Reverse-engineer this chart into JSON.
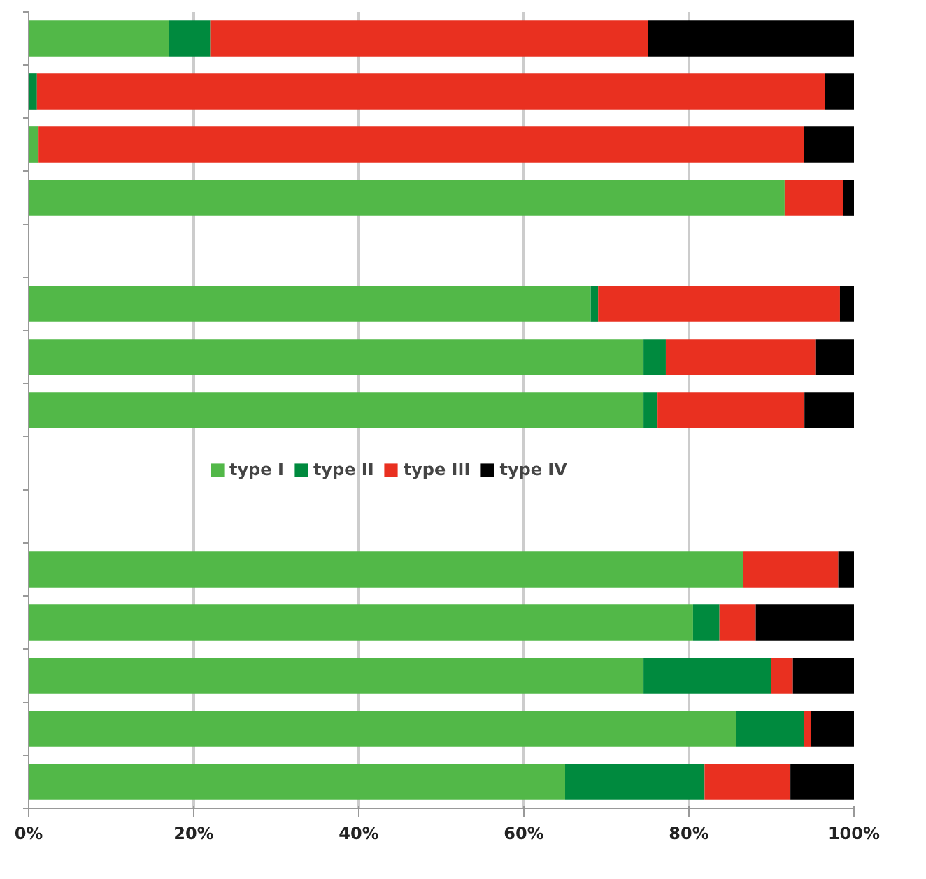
{
  "chart_data": {
    "type": "bar",
    "orientation": "horizontal",
    "stacked": true,
    "categories": [
      null,
      null,
      null,
      null,
      null,
      null,
      null,
      null,
      null,
      null,
      null,
      null,
      null,
      null,
      null
    ],
    "series": [
      {
        "name": "type I",
        "color": "#52b848",
        "values": [
          17,
          0,
          1.2,
          91.6,
          null,
          68.1,
          74.5,
          74.5,
          null,
          null,
          86.6,
          80.5,
          74.5,
          85.7,
          65
        ]
      },
      {
        "name": "type II",
        "color": "#008a3e",
        "values": [
          5,
          1,
          0,
          0,
          null,
          0.9,
          2.7,
          1.7,
          null,
          null,
          0,
          3.2,
          15.5,
          8.2,
          16.9
        ]
      },
      {
        "name": "type III",
        "color": "#e93020",
        "values": [
          53,
          95.5,
          92.7,
          7.1,
          null,
          29.3,
          18.2,
          17.8,
          null,
          null,
          11.5,
          4.4,
          2.6,
          0.9,
          10.4
        ]
      },
      {
        "name": "type IV",
        "color": "#000000",
        "values": [
          25,
          3.5,
          6.1,
          1.3,
          null,
          1.7,
          4.6,
          6,
          null,
          null,
          1.9,
          11.9,
          7.4,
          5.2,
          7.7
        ]
      }
    ],
    "xlim": [
      0,
      100
    ],
    "xticks": [
      {
        "value": 0,
        "label": "0%"
      },
      {
        "value": 20,
        "label": "20%"
      },
      {
        "value": 40,
        "label": "40%"
      },
      {
        "value": 60,
        "label": "60%"
      },
      {
        "value": 80,
        "label": "80%"
      },
      {
        "value": 100,
        "label": "100%"
      }
    ],
    "grid": "x",
    "legend": "center",
    "tick_labels": "x"
  }
}
